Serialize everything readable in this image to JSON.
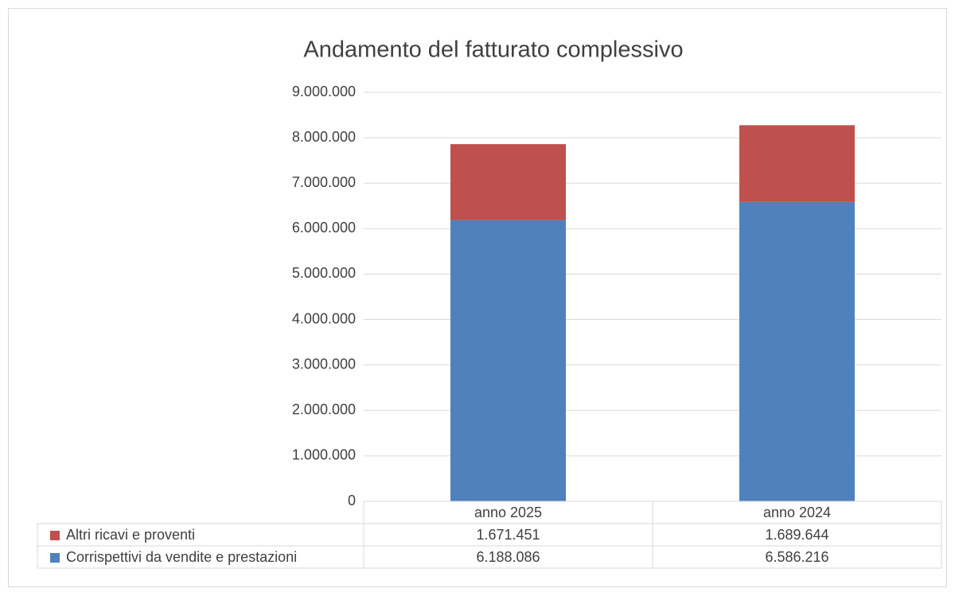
{
  "chart_data": {
    "type": "stacked_bar",
    "title": "Andamento del fatturato complessivo",
    "categories": [
      "anno 2025",
      "anno 2024"
    ],
    "series": [
      {
        "name": "Corrispettivi da vendite e prestazioni",
        "color": "#4f81bd",
        "values": [
          6188086,
          6586216
        ],
        "value_labels": [
          "6.188.086",
          "6.586.216"
        ]
      },
      {
        "name": "Altri ricavi e proventi",
        "color": "#c0504d",
        "values": [
          1671451,
          1689644
        ],
        "value_labels": [
          "1.671.451",
          "1.689.644"
        ]
      }
    ],
    "ylim": [
      0,
      9000000
    ],
    "yticks": [
      0,
      {
        "value": 1000000,
        "label": "1.000.000"
      },
      {
        "value": 2000000,
        "label": "2.000.000"
      },
      {
        "value": 3000000,
        "label": "3.000.000"
      },
      {
        "value": 4000000,
        "label": "4.000.000"
      },
      {
        "value": 5000000,
        "label": "5.000.000"
      },
      {
        "value": 6000000,
        "label": "6.000.000"
      },
      {
        "value": 7000000,
        "label": "7.000.000"
      },
      {
        "value": 8000000,
        "label": "8.000.000"
      },
      {
        "value": 9000000,
        "label": "9.000.000"
      }
    ],
    "grid": true
  }
}
